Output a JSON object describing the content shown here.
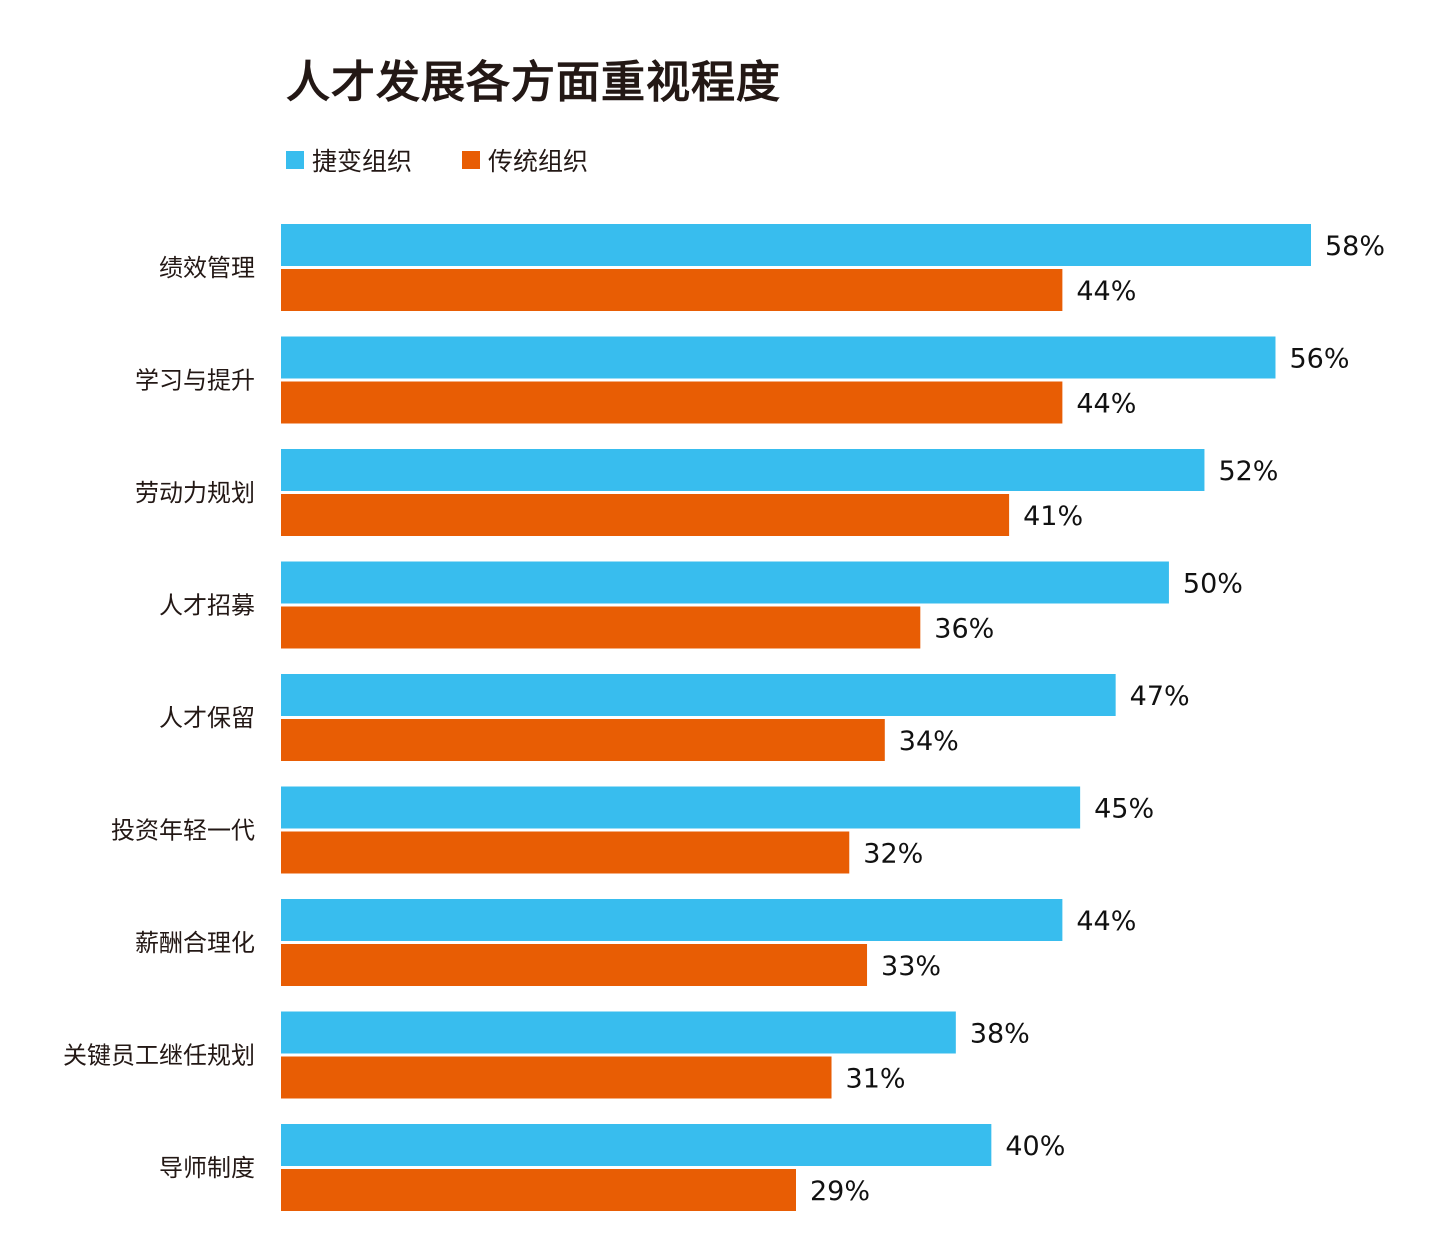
{
  "chart_data": {
    "type": "bar",
    "orientation": "horizontal",
    "title": "人才发展各方面重视程度",
    "xlabel": "",
    "ylabel": "",
    "xlim": [
      0,
      58
    ],
    "grid": false,
    "legend_position": "top-left",
    "categories": [
      "绩效管理",
      "学习与提升",
      "劳动力规划",
      "人才招募",
      "人才保留",
      "投资年轻一代",
      "薪酬合理化",
      "关键员工继任规划",
      "导师制度"
    ],
    "series": [
      {
        "name": "捷变组织",
        "color": "#38bdee",
        "values": [
          58,
          56,
          52,
          50,
          47,
          45,
          44,
          38,
          40
        ]
      },
      {
        "name": "传统组织",
        "color": "#e85d04",
        "values": [
          44,
          44,
          41,
          36,
          34,
          32,
          33,
          31,
          29
        ]
      }
    ],
    "value_suffix": "%"
  }
}
